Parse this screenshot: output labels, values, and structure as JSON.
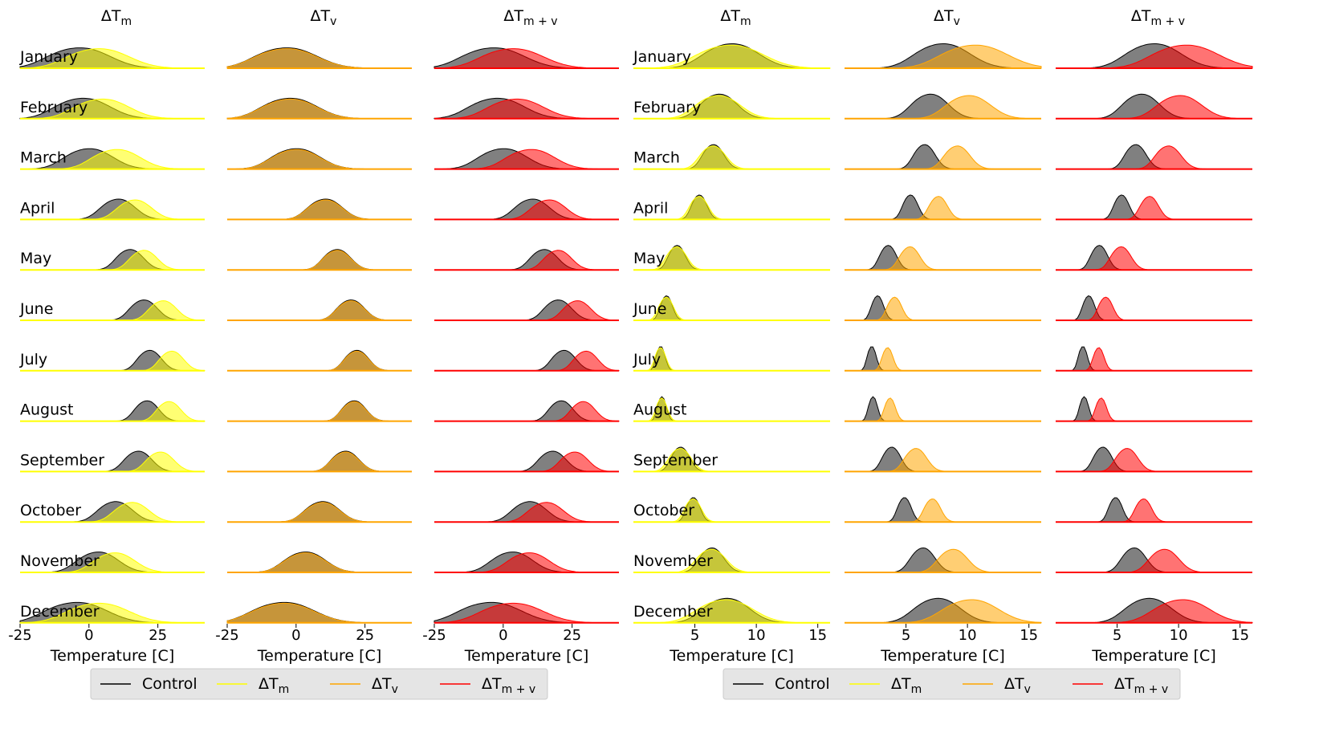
{
  "months": [
    "January",
    "February",
    "March",
    "April",
    "May",
    "June",
    "July",
    "August",
    "September",
    "October",
    "November",
    "December"
  ],
  "colors": {
    "control": "#000000",
    "dTm": "#ffff00",
    "dTv": "#ffa500",
    "dTmv": "#ff0000"
  },
  "chart_data": {
    "type": "ridgeline density (kde) small multiples",
    "xlabel": "Temperature [C]",
    "legend": {
      "entries": [
        {
          "key": "control",
          "text": "Control"
        },
        {
          "key": "dTm",
          "base": "ΔT",
          "sub": "m"
        },
        {
          "key": "dTv",
          "base": "ΔT",
          "sub": "v"
        },
        {
          "key": "dTmv",
          "base": "ΔT",
          "sub": "m + v"
        }
      ],
      "placement": "bottom"
    },
    "groups": [
      {
        "xlim": [
          -25,
          42
        ],
        "xticks": [
          -25,
          0,
          25
        ],
        "panels": [
          {
            "title_base": "ΔT",
            "title_sub": "m",
            "series": [
              "control",
              "dTm"
            ]
          },
          {
            "title_base": "ΔT",
            "title_sub": "v",
            "series": [
              "control",
              "dTv"
            ]
          },
          {
            "title_base": "ΔT",
            "title_sub": "m + v",
            "series": [
              "control",
              "dTmv"
            ]
          }
        ],
        "monthly_peak_C": {
          "control": [
            -1,
            0,
            2,
            12,
            16,
            21,
            23,
            22,
            19,
            11,
            5,
            -2
          ],
          "dTm": [
            6,
            7,
            12,
            18,
            21,
            28,
            31,
            30,
            27,
            17,
            11,
            6
          ],
          "dTv": [
            -1,
            0,
            2,
            12,
            16,
            21,
            23,
            22,
            19,
            11,
            5,
            -2
          ],
          "dTmv": [
            6,
            7,
            12,
            18,
            21,
            28,
            31,
            30,
            27,
            17,
            11,
            6
          ]
        }
      },
      {
        "xlim": [
          0,
          16
        ],
        "xticks": [
          5,
          10,
          15
        ],
        "panels": [
          {
            "title_base": "ΔT",
            "title_sub": "m",
            "series": [
              "control",
              "dTm"
            ]
          },
          {
            "title_base": "ΔT",
            "title_sub": "v",
            "series": [
              "control",
              "dTv"
            ]
          },
          {
            "title_base": "ΔT",
            "title_sub": "m + v",
            "series": [
              "control",
              "dTmv"
            ]
          }
        ],
        "monthly_peak_C": {
          "control": [
            8.5,
            7.3,
            6.7,
            5.5,
            3.7,
            2.8,
            2.3,
            2.4,
            4.0,
            5.0,
            6.6,
            8.0
          ],
          "dTm": [
            8.5,
            7.3,
            6.7,
            5.5,
            3.7,
            2.8,
            2.3,
            2.4,
            4.0,
            5.0,
            6.6,
            8.0
          ],
          "dTv": [
            11.2,
            10.5,
            9.4,
            7.8,
            5.5,
            4.2,
            3.6,
            3.8,
            6.0,
            7.3,
            9.1,
            10.8
          ],
          "dTmv": [
            11.2,
            10.5,
            9.4,
            7.8,
            5.5,
            4.2,
            3.6,
            3.8,
            6.0,
            7.3,
            9.1,
            10.8
          ]
        }
      }
    ]
  }
}
